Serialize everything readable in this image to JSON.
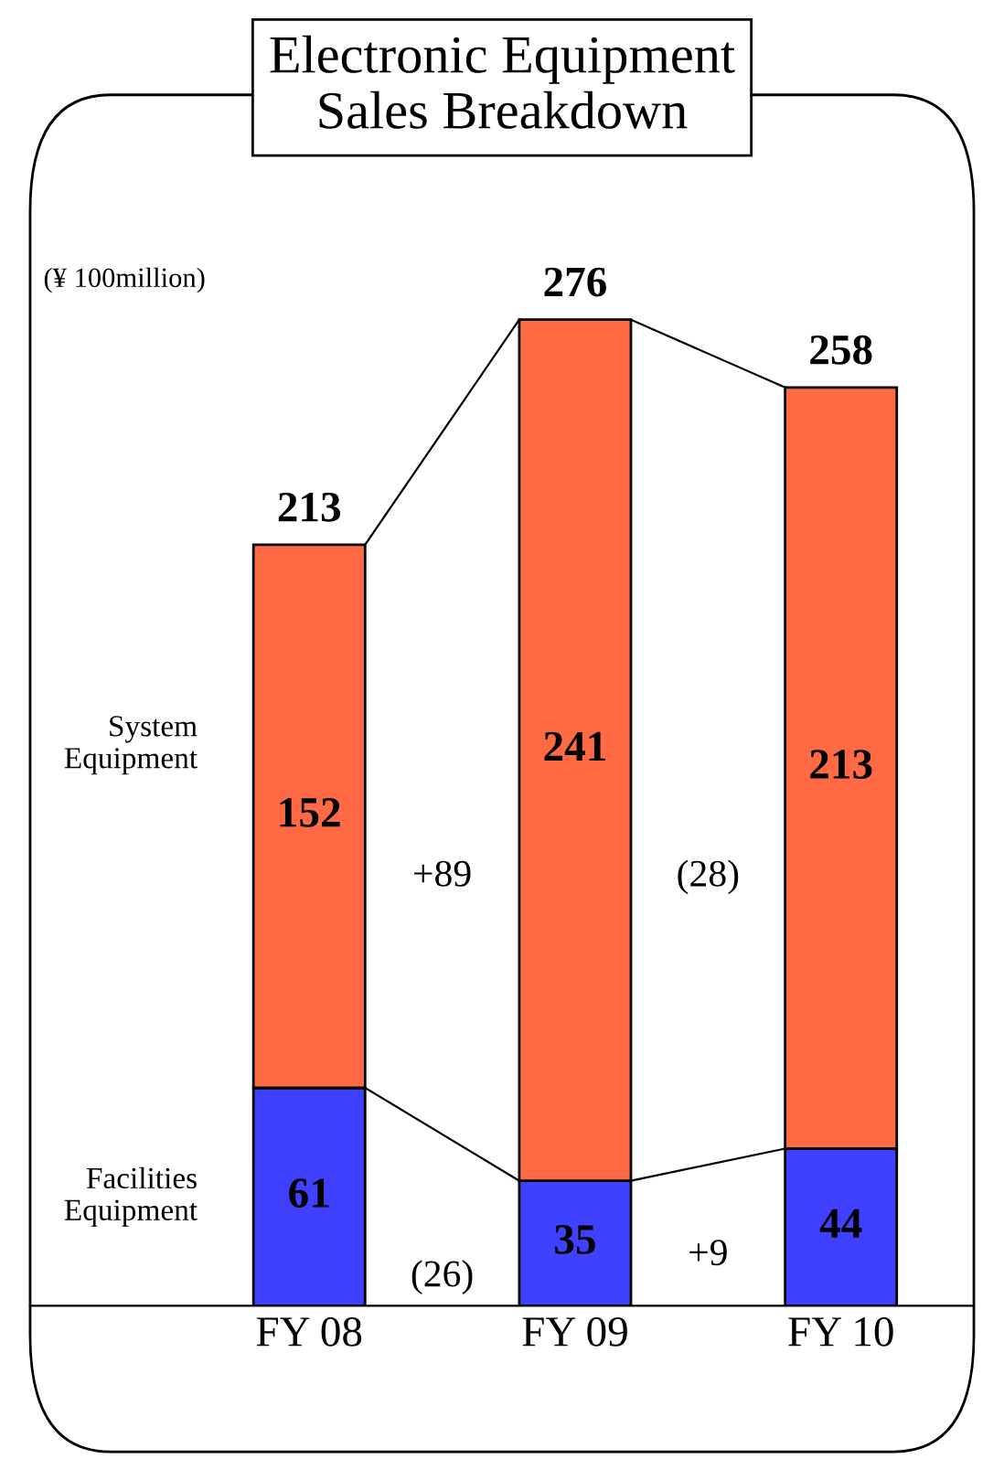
{
  "chart_data": {
    "type": "bar",
    "stacked": true,
    "title": "Electronic Equipment\nSales Breakdown",
    "categories": [
      "FY 08",
      "FY 09",
      "FY 10"
    ],
    "series": [
      {
        "name": "Facilities\nEquipment",
        "color": "#4040ff",
        "values": [
          61,
          35,
          44
        ]
      },
      {
        "name": "System\nEquipment",
        "color": "#ff6a45",
        "values": [
          152,
          241,
          213
        ]
      }
    ],
    "data_labels": true,
    "totals": [
      "213",
      "276",
      "258"
    ],
    "annotations": [
      "(¥ 100million)",
      "(26)",
      "+9",
      "+89",
      "(28)"
    ],
    "grid": false
  }
}
